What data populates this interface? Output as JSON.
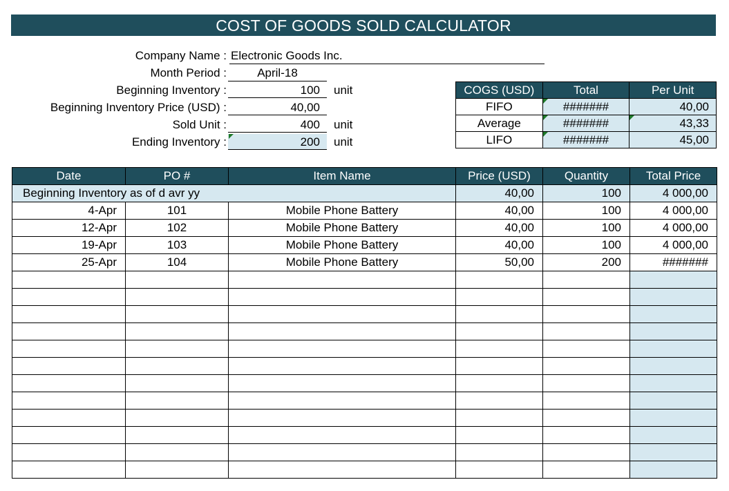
{
  "title": "COST OF GOODS SOLD CALCULATOR",
  "info": {
    "company_label": "Company Name :",
    "company_value": "Electronic Goods Inc.",
    "month_label": "Month Period :",
    "month_value": "April-18",
    "begin_inv_label": "Beginning Inventory :",
    "begin_inv_value": "100",
    "begin_price_label": "Beginning Inventory Price (USD) :",
    "begin_price_value": "40,00",
    "sold_label": "Sold Unit :",
    "sold_value": "400",
    "ending_label": "Ending Inventory :",
    "ending_value": "200",
    "unit": "unit"
  },
  "cogs": {
    "headers": [
      "COGS (USD)",
      "Total",
      "Per Unit"
    ],
    "rows": [
      {
        "method": "FIFO",
        "total": "#######",
        "per_unit": "40,00"
      },
      {
        "method": "Average",
        "total": "#######",
        "per_unit": "43,33"
      },
      {
        "method": "LIFO",
        "total": "#######",
        "per_unit": "45,00"
      }
    ]
  },
  "table": {
    "headers": [
      "Date",
      "PO #",
      "Item Name",
      "Price (USD)",
      "Quantity",
      "Total Price"
    ],
    "beginning": {
      "label": "Beginning Inventory as of  d avr yy",
      "price": "40,00",
      "quantity": "100",
      "total": "4 000,00"
    },
    "rows": [
      {
        "date": "4-Apr",
        "po": "101",
        "item": "Mobile Phone Battery",
        "price": "40,00",
        "quantity": "100",
        "total": "4 000,00"
      },
      {
        "date": "12-Apr",
        "po": "102",
        "item": "Mobile Phone Battery",
        "price": "40,00",
        "quantity": "100",
        "total": "4 000,00"
      },
      {
        "date": "19-Apr",
        "po": "103",
        "item": "Mobile Phone Battery",
        "price": "40,00",
        "quantity": "100",
        "total": "4 000,00"
      },
      {
        "date": "25-Apr",
        "po": "104",
        "item": "Mobile Phone Battery",
        "price": "50,00",
        "quantity": "200",
        "total": "#######"
      }
    ]
  }
}
